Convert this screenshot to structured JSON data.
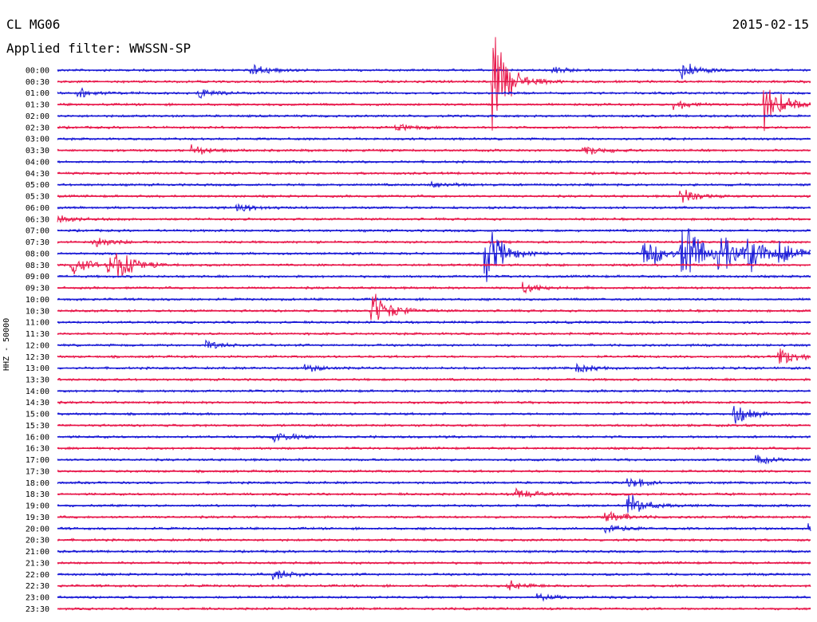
{
  "header": {
    "station": "CL MG06",
    "date": "2015-02-15",
    "filter": "Applied filter: WWSSN-SP"
  },
  "colors": {
    "even_row": "#1a1ad6",
    "odd_row": "#e8174a"
  },
  "chart_data": {
    "type": "line",
    "title": "CL MG06",
    "ylabel": "HHZ - 50000",
    "rows": [
      "00:00",
      "00:30",
      "01:00",
      "01:30",
      "02:00",
      "02:30",
      "03:00",
      "03:30",
      "04:00",
      "04:30",
      "05:00",
      "05:30",
      "06:00",
      "06:30",
      "07:00",
      "07:30",
      "08:00",
      "08:30",
      "09:00",
      "09:30",
      "10:00",
      "10:30",
      "11:00",
      "11:30",
      "12:00",
      "12:30",
      "13:00",
      "13:30",
      "14:00",
      "14:30",
      "15:00",
      "15:30",
      "16:00",
      "16:30",
      "17:00",
      "17:30",
      "18:00",
      "18:30",
      "19:00",
      "19:30",
      "20:00",
      "20:30",
      "21:00",
      "21:30",
      "22:00",
      "22:30",
      "23:00",
      "23:30"
    ],
    "row_minutes": 30,
    "events": [
      {
        "row": 0,
        "t": 0.26,
        "amp": 0.6
      },
      {
        "row": 0,
        "t": 0.66,
        "amp": 0.3
      },
      {
        "row": 0,
        "t": 0.83,
        "amp": 0.8
      },
      {
        "row": 1,
        "t": 0.58,
        "amp": 4.5
      },
      {
        "row": 2,
        "t": 0.03,
        "amp": 0.4
      },
      {
        "row": 2,
        "t": 0.19,
        "amp": 0.4
      },
      {
        "row": 3,
        "t": 0.82,
        "amp": 0.5
      },
      {
        "row": 3,
        "t": 0.94,
        "amp": 2.5
      },
      {
        "row": 5,
        "t": 0.45,
        "amp": 0.4
      },
      {
        "row": 7,
        "t": 0.18,
        "amp": 0.6
      },
      {
        "row": 7,
        "t": 0.7,
        "amp": 0.5
      },
      {
        "row": 10,
        "t": 0.5,
        "amp": 0.4
      },
      {
        "row": 11,
        "t": 0.83,
        "amp": 0.7
      },
      {
        "row": 12,
        "t": 0.24,
        "amp": 0.5
      },
      {
        "row": 13,
        "t": 0.0,
        "amp": 0.5
      },
      {
        "row": 15,
        "t": 0.05,
        "amp": 0.6
      },
      {
        "row": 16,
        "t": 0.57,
        "amp": 3.0
      },
      {
        "row": 16,
        "t": 0.78,
        "amp": 2.0
      },
      {
        "row": 16,
        "t": 0.83,
        "amp": 3.5
      },
      {
        "row": 16,
        "t": 0.88,
        "amp": 2.5
      },
      {
        "row": 16,
        "t": 0.92,
        "amp": 2.0
      },
      {
        "row": 16,
        "t": 0.96,
        "amp": 1.2
      },
      {
        "row": 17,
        "t": 0.02,
        "amp": 1.0
      },
      {
        "row": 17,
        "t": 0.07,
        "amp": 0.8
      },
      {
        "row": 17,
        "t": 0.08,
        "amp": 1.5
      },
      {
        "row": 19,
        "t": 0.62,
        "amp": 0.6
      },
      {
        "row": 21,
        "t": 0.42,
        "amp": 2.0
      },
      {
        "row": 24,
        "t": 0.2,
        "amp": 0.4
      },
      {
        "row": 25,
        "t": 0.96,
        "amp": 1.0
      },
      {
        "row": 26,
        "t": 0.33,
        "amp": 0.4
      },
      {
        "row": 26,
        "t": 0.69,
        "amp": 0.5
      },
      {
        "row": 30,
        "t": 0.9,
        "amp": 1.0
      },
      {
        "row": 32,
        "t": 0.29,
        "amp": 0.6
      },
      {
        "row": 34,
        "t": 0.93,
        "amp": 0.4
      },
      {
        "row": 36,
        "t": 0.76,
        "amp": 0.6
      },
      {
        "row": 37,
        "t": 0.61,
        "amp": 0.6
      },
      {
        "row": 38,
        "t": 0.76,
        "amp": 1.2
      },
      {
        "row": 39,
        "t": 0.73,
        "amp": 0.8
      },
      {
        "row": 40,
        "t": 0.73,
        "amp": 0.6
      },
      {
        "row": 40,
        "t": 1.0,
        "amp": 0.5
      },
      {
        "row": 44,
        "t": 0.29,
        "amp": 0.6
      },
      {
        "row": 45,
        "t": 0.6,
        "amp": 0.5
      },
      {
        "row": 46,
        "t": 0.64,
        "amp": 0.4
      }
    ]
  }
}
